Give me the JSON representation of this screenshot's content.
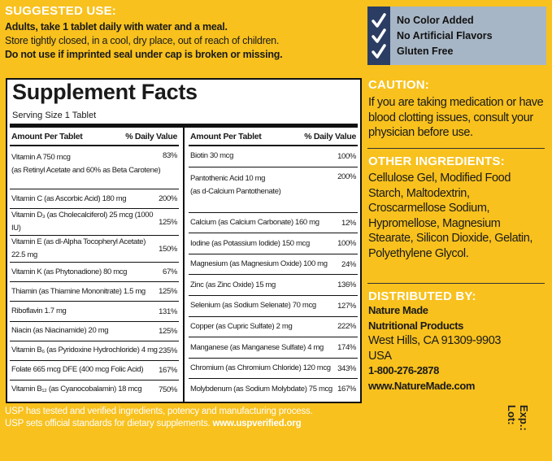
{
  "suggested_use": {
    "title": "SUGGESTED USE:",
    "lines": [
      "Adults, take 1 tablet daily with water and a meal.",
      "Store tightly closed, in a cool, dry place, out of reach of children.",
      "Do not use if imprinted seal under cap is broken or missing."
    ]
  },
  "badges": [
    "No Color Added",
    "No Artificial Flavors",
    "Gluten Free"
  ],
  "supplement_facts": {
    "title": "Supplement Facts",
    "serving": "Serving Size 1 Tablet",
    "headers": [
      "Amount Per Tablet",
      "% Daily Value"
    ],
    "left_rows": [
      {
        "amount": "Vitamin A 750 mcg",
        "detail": "(as Retinyl Acetate and 60% as Beta Carotene)",
        "dv": "83%"
      },
      {
        "amount": "Vitamin C (as Ascorbic Acid) 180 mg",
        "dv": "200%"
      },
      {
        "amount": "Vitamin D₃ (as Cholecalciferol) 25 mcg (1000 IU)",
        "dv": "125%"
      },
      {
        "amount": "Vitamin E (as dl-Alpha Tocopheryl Acetate) 22.5 mg",
        "dv": "150%"
      },
      {
        "amount": "Vitamin K (as Phytonadione) 80 mcg",
        "dv": "67%"
      },
      {
        "amount": "Thiamin (as Thiamine Mononitrate) 1.5 mg",
        "dv": "125%"
      },
      {
        "amount": "Riboflavin 1.7 mg",
        "dv": "131%"
      },
      {
        "amount": "Niacin (as Niacinamide) 20 mg",
        "dv": "125%"
      },
      {
        "amount": "Vitamin B₆ (as Pyridoxine Hydrochloride) 4 mg",
        "dv": "235%"
      },
      {
        "amount": "Folate 665 mcg DFE (400 mcg Folic Acid)",
        "dv": "167%"
      },
      {
        "amount": "Vitamin B₁₂ (as Cyanocobalamin) 18 mcg",
        "dv": "750%"
      }
    ],
    "right_rows": [
      {
        "amount": "Biotin 30 mcg",
        "dv": "100%"
      },
      {
        "amount": "Pantothenic Acid 10 mg",
        "detail": "(as d-Calcium Pantothenate)",
        "dv": "200%"
      },
      {
        "amount": "Calcium (as Calcium Carbonate) 160 mg",
        "dv": "12%"
      },
      {
        "amount": "Iodine (as Potassium Iodide) 150 mcg",
        "dv": "100%"
      },
      {
        "amount": "Magnesium (as Magnesium Oxide) 100 mg",
        "dv": "24%"
      },
      {
        "amount": "Zinc (as Zinc Oxide) 15 mg",
        "dv": "136%"
      },
      {
        "amount": "Selenium (as Sodium Selenate) 70 mcg",
        "dv": "127%"
      },
      {
        "amount": "Copper (as Cupric Sulfate) 2 mg",
        "dv": "222%"
      },
      {
        "amount": "Manganese (as Manganese Sulfate) 4 mg",
        "dv": "174%"
      },
      {
        "amount": "Chromium (as Chromium Chloride) 120 mcg",
        "dv": "343%"
      },
      {
        "amount": "Molybdenum (as Sodium Molybdate) 75 mcg",
        "dv": "167%"
      }
    ]
  },
  "usp": {
    "line1": "USP has tested and verified ingredients, potency and manufacturing process.",
    "line2": "USP sets official standards for dietary supplements.",
    "url": "www.uspverified.org"
  },
  "caution": {
    "title": "CAUTION:",
    "text": "If you are taking medication or have blood clotting issues, consult your physician before use."
  },
  "other_ingredients": {
    "title": "OTHER INGREDIENTS:",
    "text": "Cellulose Gel, Modified Food Starch, Maltodextrin, Croscarmellose Sodium, Hypromellose, Magnesium Stearate, Silicon Dioxide, Gelatin, Polyethylene Glycol."
  },
  "distributed_by": {
    "title": "DISTRIBUTED BY:",
    "company": [
      "Nature Made",
      "Nutritional Products"
    ],
    "address": [
      "West Hills, CA 91309-9903",
      "USA"
    ],
    "phone": "1-800-276-2878",
    "website": "www.NatureMade.com"
  },
  "lot_exp": [
    "Lot:",
    "Exp.:"
  ]
}
